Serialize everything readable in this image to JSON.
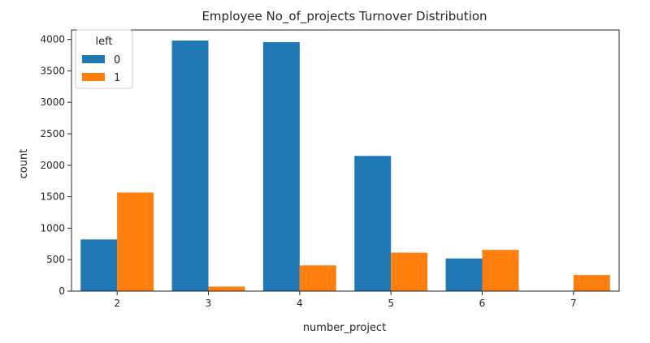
{
  "chart_data": {
    "type": "bar",
    "title": "Employee No_of_projects Turnover Distribution",
    "xlabel": "number_project",
    "ylabel": "count",
    "categories": [
      "2",
      "3",
      "4",
      "5",
      "6",
      "7"
    ],
    "ylim": [
      0,
      4150
    ],
    "yticks": [
      0,
      500,
      1000,
      1500,
      2000,
      2500,
      3000,
      3500,
      4000
    ],
    "grid": false,
    "legend": {
      "title": "left",
      "placement": "top-left"
    },
    "series": [
      {
        "name": "0",
        "color": "#1f77b4",
        "values": [
          821,
          3983,
          3956,
          2149,
          519,
          0
        ]
      },
      {
        "name": "1",
        "color": "#ff7f0e",
        "values": [
          1567,
          72,
          409,
          612,
          655,
          256
        ]
      }
    ]
  }
}
